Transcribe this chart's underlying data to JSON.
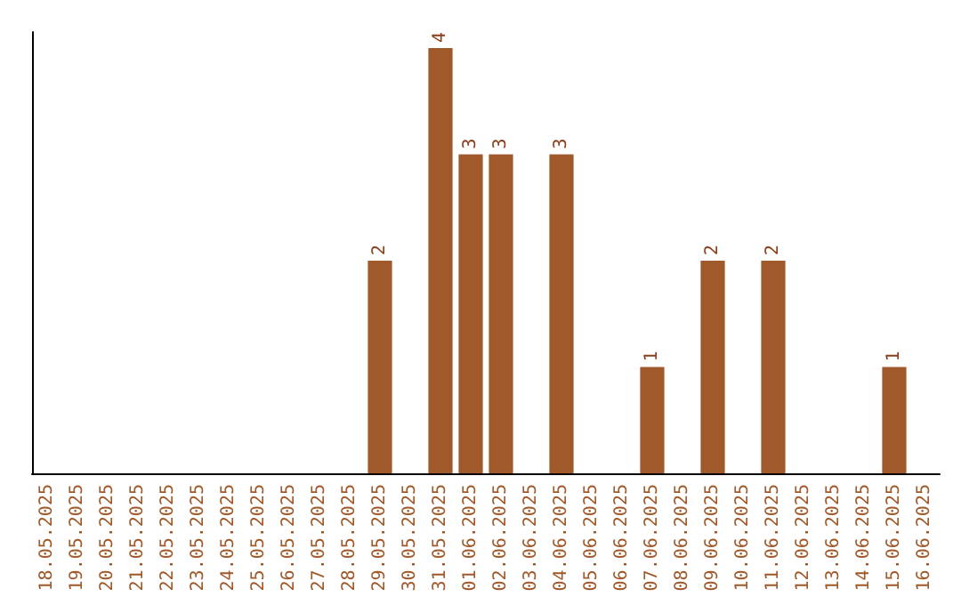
{
  "chart_data": {
    "type": "bar",
    "categories": [
      "18.05.2025",
      "19.05.2025",
      "20.05.2025",
      "21.05.2025",
      "22.05.2025",
      "23.05.2025",
      "24.05.2025",
      "25.05.2025",
      "26.05.2025",
      "27.05.2025",
      "28.05.2025",
      "29.05.2025",
      "30.05.2025",
      "31.05.2025",
      "01.06.2025",
      "02.06.2025",
      "03.06.2025",
      "04.06.2025",
      "05.06.2025",
      "06.06.2025",
      "07.06.2025",
      "08.06.2025",
      "09.06.2025",
      "10.06.2025",
      "11.06.2025",
      "12.06.2025",
      "13.06.2025",
      "14.06.2025",
      "15.06.2025",
      "16.06.2025"
    ],
    "values": [
      0,
      0,
      0,
      0,
      0,
      0,
      0,
      0,
      0,
      0,
      0,
      2,
      0,
      4,
      3,
      3,
      0,
      3,
      0,
      0,
      1,
      0,
      2,
      0,
      2,
      0,
      0,
      0,
      1,
      0
    ],
    "value_labels": [
      null,
      null,
      null,
      null,
      null,
      null,
      null,
      null,
      null,
      null,
      null,
      "2",
      null,
      "4",
      "3",
      "3",
      null,
      "3",
      null,
      null,
      "1",
      null,
      "2",
      null,
      "2",
      null,
      null,
      null,
      "1",
      null
    ],
    "color": "#a0592a",
    "ylim": [
      0,
      4.15
    ],
    "tick_labels": "x"
  }
}
